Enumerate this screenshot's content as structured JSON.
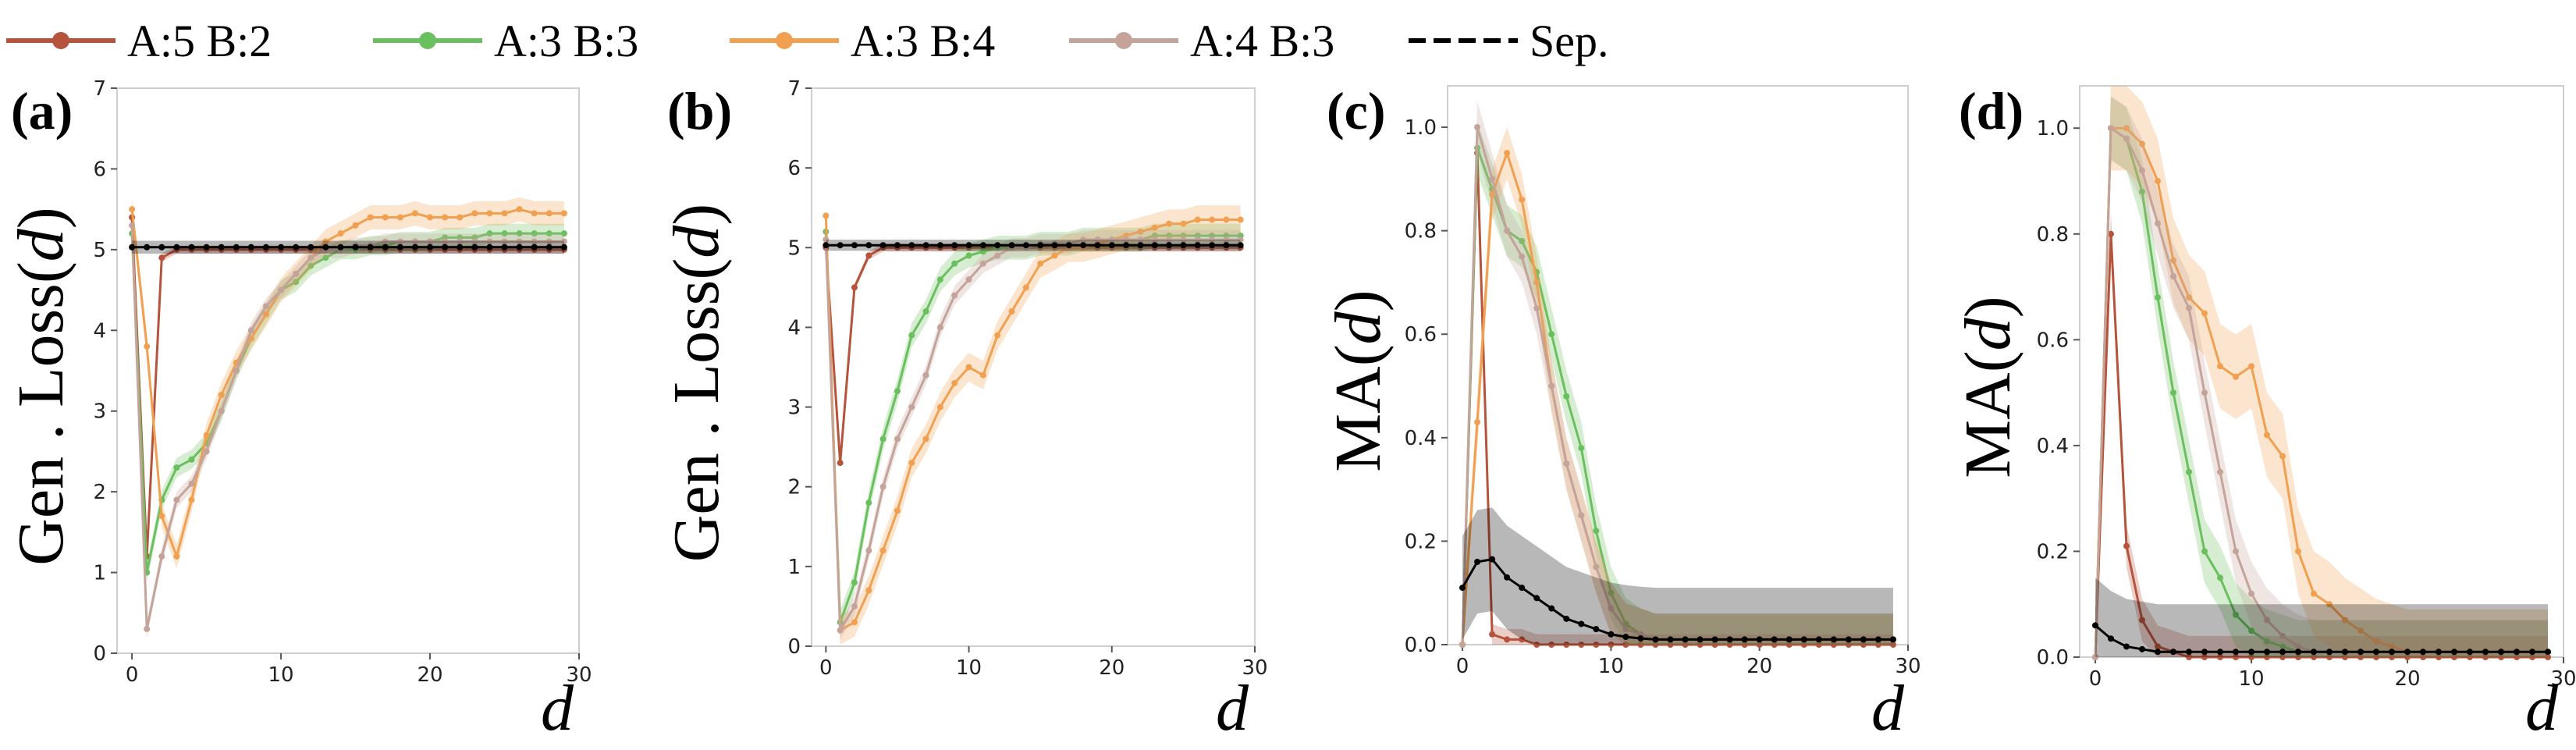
{
  "legend": [
    {
      "label": "A:5 B:2",
      "color": "#b5533c"
    },
    {
      "label": "A:3 B:3",
      "color": "#6abf5e"
    },
    {
      "label": "A:3 B:4",
      "color": "#f0a050"
    },
    {
      "label": "A:4 B:3",
      "color": "#c4a49a"
    },
    {
      "label": "Sep.",
      "color": "#000000"
    }
  ],
  "chart_data": [
    {
      "type": "line",
      "panel": "(a)",
      "ylabel": "Gen . Loss(",
      "ylabel_var": "d",
      "ylabel_close": ")",
      "xlabel": "d",
      "xlim": [
        -1,
        30
      ],
      "ylim": [
        0,
        7
      ],
      "xticks": [
        0,
        10,
        20,
        30
      ],
      "yticks": [
        0,
        1,
        2,
        3,
        4,
        5,
        6,
        7
      ],
      "x": [
        0,
        1,
        2,
        3,
        4,
        5,
        6,
        7,
        8,
        9,
        10,
        11,
        12,
        13,
        14,
        15,
        16,
        17,
        18,
        19,
        20,
        21,
        22,
        23,
        24,
        25,
        26,
        27,
        28,
        29
      ],
      "series": [
        {
          "name": "A:5 B:2",
          "color": "#b5533c",
          "band": 0.05,
          "values": [
            5.4,
            1.2,
            4.9,
            5.0,
            5.0,
            5.0,
            5.0,
            5.0,
            5.0,
            5.0,
            5.0,
            5.0,
            5.0,
            5.0,
            5.0,
            5.0,
            5.0,
            5.0,
            5.0,
            5.0,
            5.0,
            5.0,
            5.0,
            5.0,
            5.0,
            5.0,
            5.0,
            5.0,
            5.0,
            5.0
          ]
        },
        {
          "name": "A:3 B:3",
          "color": "#6abf5e",
          "band": 0.12,
          "values": [
            5.2,
            1.0,
            1.9,
            2.3,
            2.4,
            2.6,
            3.0,
            3.5,
            3.9,
            4.2,
            4.5,
            4.6,
            4.8,
            4.9,
            5.0,
            5.0,
            5.05,
            5.05,
            5.1,
            5.1,
            5.1,
            5.15,
            5.15,
            5.15,
            5.2,
            5.2,
            5.2,
            5.2,
            5.2,
            5.2
          ]
        },
        {
          "name": "A:3 B:4",
          "color": "#f0a050",
          "band": 0.15,
          "values": [
            5.5,
            3.8,
            1.7,
            1.2,
            1.9,
            2.7,
            3.2,
            3.6,
            3.9,
            4.2,
            4.5,
            4.7,
            4.9,
            5.1,
            5.2,
            5.3,
            5.4,
            5.4,
            5.4,
            5.45,
            5.4,
            5.4,
            5.4,
            5.45,
            5.45,
            5.45,
            5.5,
            5.45,
            5.45,
            5.45
          ]
        },
        {
          "name": "A:4 B:3",
          "color": "#c4a49a",
          "band": 0.1,
          "values": [
            5.3,
            0.3,
            1.2,
            1.9,
            2.1,
            2.5,
            3.0,
            3.5,
            4.0,
            4.3,
            4.5,
            4.7,
            4.9,
            5.0,
            5.0,
            5.05,
            5.05,
            5.1,
            5.1,
            5.1,
            5.1,
            5.1,
            5.1,
            5.1,
            5.1,
            5.1,
            5.1,
            5.1,
            5.1,
            5.1
          ]
        },
        {
          "name": "Sep.",
          "color": "#000000",
          "band": 0.08,
          "values": [
            5.03,
            5.03,
            5.03,
            5.03,
            5.03,
            5.03,
            5.03,
            5.03,
            5.03,
            5.03,
            5.03,
            5.03,
            5.03,
            5.03,
            5.03,
            5.03,
            5.03,
            5.03,
            5.03,
            5.03,
            5.03,
            5.03,
            5.03,
            5.03,
            5.03,
            5.03,
            5.03,
            5.03,
            5.03,
            5.03
          ]
        }
      ]
    },
    {
      "type": "line",
      "panel": "(b)",
      "ylabel": "Gen . Loss(",
      "ylabel_var": "d",
      "ylabel_close": ")",
      "xlabel": "d",
      "xlim": [
        -1,
        30
      ],
      "ylim": [
        0,
        7
      ],
      "xticks": [
        0,
        10,
        20,
        30
      ],
      "yticks": [
        0,
        1,
        2,
        3,
        4,
        5,
        6,
        7
      ],
      "x": [
        0,
        1,
        2,
        3,
        4,
        5,
        6,
        7,
        8,
        9,
        10,
        11,
        12,
        13,
        14,
        15,
        16,
        17,
        18,
        19,
        20,
        21,
        22,
        23,
        24,
        25,
        26,
        27,
        28,
        29
      ],
      "series": [
        {
          "name": "A:5 B:2",
          "color": "#b5533c",
          "band": 0.05,
          "values": [
            5.0,
            2.3,
            4.5,
            4.9,
            5.0,
            5.0,
            5.0,
            5.0,
            5.0,
            5.0,
            5.0,
            5.0,
            5.0,
            5.0,
            5.0,
            5.0,
            5.0,
            5.0,
            5.0,
            5.0,
            5.0,
            5.0,
            5.0,
            5.0,
            5.0,
            5.0,
            5.0,
            5.0,
            5.0,
            5.0
          ]
        },
        {
          "name": "A:3 B:3",
          "color": "#6abf5e",
          "band": 0.15,
          "values": [
            5.2,
            0.3,
            0.8,
            1.8,
            2.6,
            3.2,
            3.9,
            4.2,
            4.6,
            4.8,
            4.9,
            4.95,
            5.0,
            5.0,
            5.0,
            5.05,
            5.05,
            5.05,
            5.1,
            5.1,
            5.1,
            5.1,
            5.1,
            5.15,
            5.15,
            5.15,
            5.15,
            5.15,
            5.15,
            5.15
          ]
        },
        {
          "name": "A:3 B:4",
          "color": "#f0a050",
          "band": 0.18,
          "values": [
            5.4,
            0.2,
            0.3,
            0.7,
            1.2,
            1.7,
            2.3,
            2.6,
            3.0,
            3.3,
            3.5,
            3.4,
            3.9,
            4.2,
            4.5,
            4.8,
            4.9,
            5.0,
            5.0,
            5.05,
            5.1,
            5.15,
            5.2,
            5.25,
            5.3,
            5.3,
            5.35,
            5.35,
            5.35,
            5.35
          ]
        },
        {
          "name": "A:4 B:3",
          "color": "#c4a49a",
          "band": 0.12,
          "values": [
            5.1,
            0.2,
            0.5,
            1.2,
            2.0,
            2.6,
            3.0,
            3.4,
            4.0,
            4.4,
            4.6,
            4.8,
            4.9,
            5.0,
            5.0,
            5.05,
            5.05,
            5.05,
            5.1,
            5.1,
            5.1,
            5.1,
            5.1,
            5.1,
            5.1,
            5.1,
            5.1,
            5.1,
            5.1,
            5.1
          ]
        },
        {
          "name": "Sep.",
          "color": "#000000",
          "band": 0.07,
          "values": [
            5.03,
            5.03,
            5.03,
            5.03,
            5.03,
            5.03,
            5.03,
            5.03,
            5.03,
            5.03,
            5.03,
            5.03,
            5.03,
            5.03,
            5.03,
            5.03,
            5.03,
            5.03,
            5.03,
            5.03,
            5.03,
            5.03,
            5.03,
            5.03,
            5.03,
            5.03,
            5.03,
            5.03,
            5.03,
            5.03
          ]
        }
      ]
    },
    {
      "type": "line",
      "panel": "(c)",
      "ylabel": "MA(",
      "ylabel_var": "d",
      "ylabel_close": ")",
      "xlabel": "d",
      "xlim": [
        -1,
        30
      ],
      "ylim": [
        0,
        1.08
      ],
      "xticks": [
        0,
        10,
        20,
        30
      ],
      "yticks": [
        0.0,
        0.2,
        0.4,
        0.6,
        0.8,
        1.0
      ],
      "ytick_labels": [
        "0.0",
        "0.2",
        "0.4",
        "0.6",
        "0.8",
        "1.0"
      ],
      "x": [
        0,
        1,
        2,
        3,
        4,
        5,
        6,
        7,
        8,
        9,
        10,
        11,
        12,
        13,
        14,
        15,
        16,
        17,
        18,
        19,
        20,
        21,
        22,
        23,
        24,
        25,
        26,
        27,
        28,
        29
      ],
      "series": [
        {
          "name": "A:5 B:2",
          "color": "#b5533c",
          "band": 0.02,
          "values": [
            0.0,
            0.95,
            0.02,
            0.01,
            0.01,
            0.0,
            0.0,
            0.0,
            0.0,
            0.0,
            0.0,
            0.0,
            0.0,
            0.0,
            0.0,
            0.0,
            0.0,
            0.0,
            0.0,
            0.0,
            0.0,
            0.0,
            0.0,
            0.0,
            0.0,
            0.0,
            0.0,
            0.0,
            0.0,
            0.0
          ]
        },
        {
          "name": "A:3 B:3",
          "color": "#6abf5e",
          "band": 0.05,
          "values": [
            0.0,
            0.96,
            0.88,
            0.8,
            0.78,
            0.72,
            0.6,
            0.48,
            0.38,
            0.22,
            0.1,
            0.04,
            0.02,
            0.01,
            0.01,
            0.01,
            0.01,
            0.01,
            0.01,
            0.01,
            0.01,
            0.01,
            0.01,
            0.01,
            0.01,
            0.01,
            0.01,
            0.01,
            0.01,
            0.01
          ]
        },
        {
          "name": "A:3 B:4",
          "color": "#f0a050",
          "band": 0.05,
          "values": [
            0.0,
            0.43,
            0.87,
            0.95,
            0.86,
            0.7,
            0.5,
            0.35,
            0.25,
            0.15,
            0.07,
            0.03,
            0.02,
            0.01,
            0.01,
            0.01,
            0.01,
            0.01,
            0.01,
            0.01,
            0.01,
            0.01,
            0.01,
            0.01,
            0.01,
            0.01,
            0.01,
            0.01,
            0.01,
            0.01
          ]
        },
        {
          "name": "A:4 B:3",
          "color": "#c4a49a",
          "band": 0.05,
          "values": [
            0.0,
            1.0,
            0.9,
            0.8,
            0.75,
            0.65,
            0.5,
            0.35,
            0.25,
            0.15,
            0.07,
            0.03,
            0.02,
            0.01,
            0.01,
            0.01,
            0.01,
            0.01,
            0.01,
            0.01,
            0.01,
            0.01,
            0.01,
            0.01,
            0.01,
            0.01,
            0.01,
            0.01,
            0.01,
            0.01
          ]
        },
        {
          "name": "Sep.",
          "color": "#000000",
          "band": 0.1,
          "values": [
            0.11,
            0.16,
            0.165,
            0.13,
            0.11,
            0.09,
            0.07,
            0.05,
            0.04,
            0.03,
            0.02,
            0.015,
            0.012,
            0.01,
            0.01,
            0.01,
            0.01,
            0.01,
            0.01,
            0.01,
            0.01,
            0.01,
            0.01,
            0.01,
            0.01,
            0.01,
            0.01,
            0.01,
            0.01,
            0.01
          ]
        }
      ]
    },
    {
      "type": "line",
      "panel": "(d)",
      "ylabel": "MA(",
      "ylabel_var": "d",
      "ylabel_close": ")",
      "xlabel": "d",
      "xlim": [
        -1,
        30
      ],
      "ylim": [
        0,
        1.08
      ],
      "xticks": [
        0,
        10,
        20,
        30
      ],
      "yticks": [
        0.0,
        0.2,
        0.4,
        0.6,
        0.8,
        1.0
      ],
      "ytick_labels": [
        "0.0",
        "0.2",
        "0.4",
        "0.6",
        "0.8",
        "1.0"
      ],
      "x": [
        0,
        1,
        2,
        3,
        4,
        5,
        6,
        7,
        8,
        9,
        10,
        11,
        12,
        13,
        14,
        15,
        16,
        17,
        18,
        19,
        20,
        21,
        22,
        23,
        24,
        25,
        26,
        27,
        28,
        29
      ],
      "series": [
        {
          "name": "A:5 B:2",
          "color": "#b5533c",
          "band": 0.04,
          "values": [
            0.0,
            0.8,
            0.21,
            0.07,
            0.02,
            0.01,
            0.0,
            0.0,
            0.0,
            0.0,
            0.0,
            0.0,
            0.0,
            0.0,
            0.0,
            0.0,
            0.0,
            0.0,
            0.0,
            0.0,
            0.0,
            0.0,
            0.0,
            0.0,
            0.0,
            0.0,
            0.0,
            0.0,
            0.0,
            0.0
          ]
        },
        {
          "name": "A:3 B:3",
          "color": "#6abf5e",
          "band": 0.06,
          "values": [
            0.0,
            1.0,
            0.98,
            0.88,
            0.68,
            0.5,
            0.35,
            0.2,
            0.15,
            0.08,
            0.05,
            0.03,
            0.02,
            0.01,
            0.01,
            0.01,
            0.01,
            0.01,
            0.01,
            0.01,
            0.01,
            0.01,
            0.01,
            0.01,
            0.01,
            0.01,
            0.01,
            0.01,
            0.01,
            0.01
          ]
        },
        {
          "name": "A:3 B:4",
          "color": "#f0a050",
          "band": 0.08,
          "values": [
            0.0,
            1.0,
            1.0,
            0.97,
            0.9,
            0.75,
            0.68,
            0.65,
            0.55,
            0.53,
            0.55,
            0.42,
            0.38,
            0.2,
            0.12,
            0.1,
            0.07,
            0.05,
            0.03,
            0.02,
            0.01,
            0.01,
            0.01,
            0.01,
            0.01,
            0.01,
            0.01,
            0.01,
            0.01,
            0.01
          ]
        },
        {
          "name": "A:4 B:3",
          "color": "#c4a49a",
          "band": 0.06,
          "values": [
            0.0,
            1.0,
            0.98,
            0.92,
            0.82,
            0.72,
            0.66,
            0.5,
            0.35,
            0.2,
            0.12,
            0.07,
            0.04,
            0.02,
            0.01,
            0.01,
            0.01,
            0.01,
            0.01,
            0.01,
            0.01,
            0.01,
            0.01,
            0.01,
            0.01,
            0.01,
            0.01,
            0.01,
            0.01,
            0.01
          ]
        },
        {
          "name": "Sep.",
          "color": "#000000",
          "band": 0.09,
          "values": [
            0.06,
            0.035,
            0.02,
            0.015,
            0.01,
            0.01,
            0.01,
            0.01,
            0.01,
            0.01,
            0.01,
            0.01,
            0.01,
            0.01,
            0.01,
            0.01,
            0.01,
            0.01,
            0.01,
            0.01,
            0.01,
            0.01,
            0.01,
            0.01,
            0.01,
            0.01,
            0.01,
            0.01,
            0.01,
            0.01
          ]
        }
      ]
    }
  ]
}
